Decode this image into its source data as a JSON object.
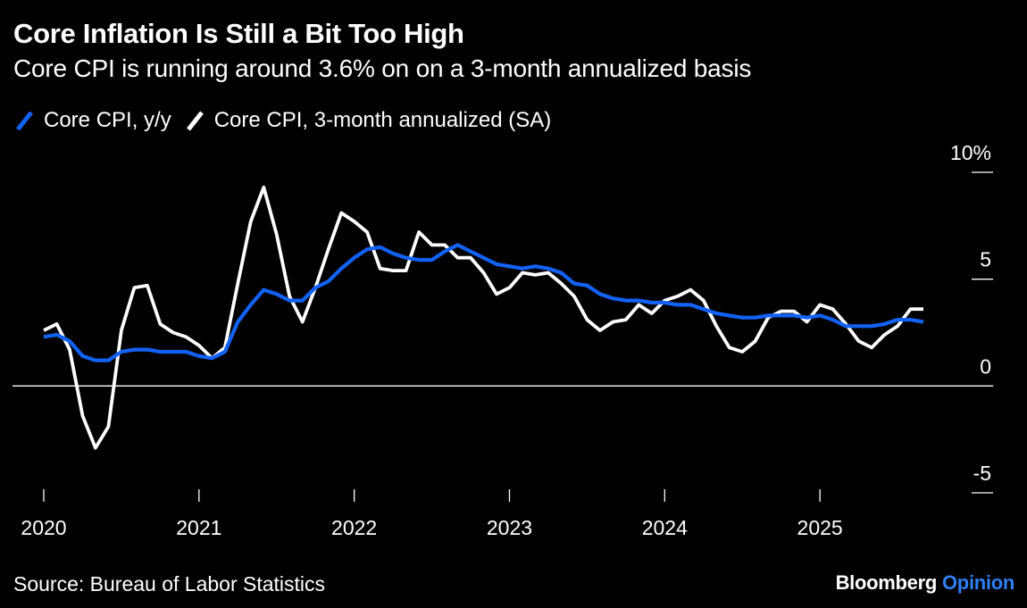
{
  "title": "Core Inflation Is Still a Bit Too High",
  "subtitle": "Core CPI is running around 3.6% on on a 3-month annualized basis",
  "source": "Source: Bureau of Labor Statistics",
  "brand": {
    "name": "Bloomberg",
    "suffix": "Opinion",
    "suffix_color": "#2f7ff5"
  },
  "colors": {
    "blue": "#1262f5",
    "white": "#ffffff",
    "background": "#000000",
    "zero_line": "#ffffff"
  },
  "chart_data": {
    "type": "line",
    "xlabel": "",
    "ylabel": "",
    "ylim": [
      -5,
      10
    ],
    "xlim": [
      "2019-12",
      "2025-12"
    ],
    "y_ticks": [
      {
        "value": 10,
        "label": "10%"
      },
      {
        "value": 5,
        "label": "5"
      },
      {
        "value": 0,
        "label": "0"
      },
      {
        "value": -5,
        "label": "-5"
      }
    ],
    "x_ticks": [
      {
        "date": "2020-01",
        "label": "2020"
      },
      {
        "date": "2021-01",
        "label": "2021"
      },
      {
        "date": "2022-01",
        "label": "2022"
      },
      {
        "date": "2023-01",
        "label": "2023"
      },
      {
        "date": "2024-01",
        "label": "2024"
      },
      {
        "date": "2025-01",
        "label": "2025"
      }
    ],
    "grid": false,
    "legend_position": "top-left",
    "x": [
      "2020-01",
      "2020-02",
      "2020-03",
      "2020-04",
      "2020-05",
      "2020-06",
      "2020-07",
      "2020-08",
      "2020-09",
      "2020-10",
      "2020-11",
      "2020-12",
      "2021-01",
      "2021-02",
      "2021-03",
      "2021-04",
      "2021-05",
      "2021-06",
      "2021-07",
      "2021-08",
      "2021-09",
      "2021-10",
      "2021-11",
      "2021-12",
      "2022-01",
      "2022-02",
      "2022-03",
      "2022-04",
      "2022-05",
      "2022-06",
      "2022-07",
      "2022-08",
      "2022-09",
      "2022-10",
      "2022-11",
      "2022-12",
      "2023-01",
      "2023-02",
      "2023-03",
      "2023-04",
      "2023-05",
      "2023-06",
      "2023-07",
      "2023-08",
      "2023-09",
      "2023-10",
      "2023-11",
      "2023-12",
      "2024-01",
      "2024-02",
      "2024-03",
      "2024-04",
      "2024-05",
      "2024-06",
      "2024-07",
      "2024-08",
      "2024-09",
      "2024-10",
      "2024-11",
      "2024-12",
      "2025-01",
      "2025-02",
      "2025-03",
      "2025-04",
      "2025-05",
      "2025-06",
      "2025-07",
      "2025-08",
      "2025-09"
    ],
    "series": [
      {
        "name": "Core CPI, y/y",
        "color": "#1262f5",
        "values": [
          2.3,
          2.4,
          2.1,
          1.4,
          1.2,
          1.2,
          1.6,
          1.7,
          1.7,
          1.6,
          1.6,
          1.6,
          1.4,
          1.3,
          1.6,
          3.0,
          3.8,
          4.5,
          4.3,
          4.0,
          4.0,
          4.6,
          4.9,
          5.5,
          6.0,
          6.4,
          6.5,
          6.2,
          6.0,
          5.9,
          5.9,
          6.3,
          6.6,
          6.3,
          6.0,
          5.7,
          5.6,
          5.5,
          5.6,
          5.5,
          5.3,
          4.8,
          4.7,
          4.3,
          4.1,
          4.0,
          4.0,
          3.9,
          3.9,
          3.8,
          3.8,
          3.6,
          3.4,
          3.3,
          3.2,
          3.2,
          3.3,
          3.3,
          3.3,
          3.2,
          3.3,
          3.1,
          2.8,
          2.8,
          2.8,
          2.9,
          3.1,
          3.1,
          3.0
        ]
      },
      {
        "name": "Core CPI, 3-month annualized (SA)",
        "color": "#ffffff",
        "values": [
          2.6,
          2.9,
          1.7,
          -1.4,
          -2.9,
          -1.9,
          2.6,
          4.6,
          4.7,
          2.9,
          2.5,
          2.3,
          1.9,
          1.3,
          1.8,
          4.8,
          7.7,
          9.3,
          7.1,
          4.2,
          3.0,
          4.6,
          6.4,
          8.1,
          7.7,
          7.2,
          5.5,
          5.4,
          5.4,
          7.2,
          6.6,
          6.6,
          6.0,
          6.0,
          5.3,
          4.3,
          4.6,
          5.3,
          5.2,
          5.3,
          4.8,
          4.2,
          3.1,
          2.6,
          3.0,
          3.1,
          3.8,
          3.4,
          4.0,
          4.2,
          4.5,
          4.0,
          2.8,
          1.8,
          1.6,
          2.1,
          3.2,
          3.5,
          3.5,
          3.0,
          3.8,
          3.6,
          2.9,
          2.1,
          1.8,
          2.4,
          2.8,
          3.6,
          3.6
        ]
      }
    ]
  }
}
